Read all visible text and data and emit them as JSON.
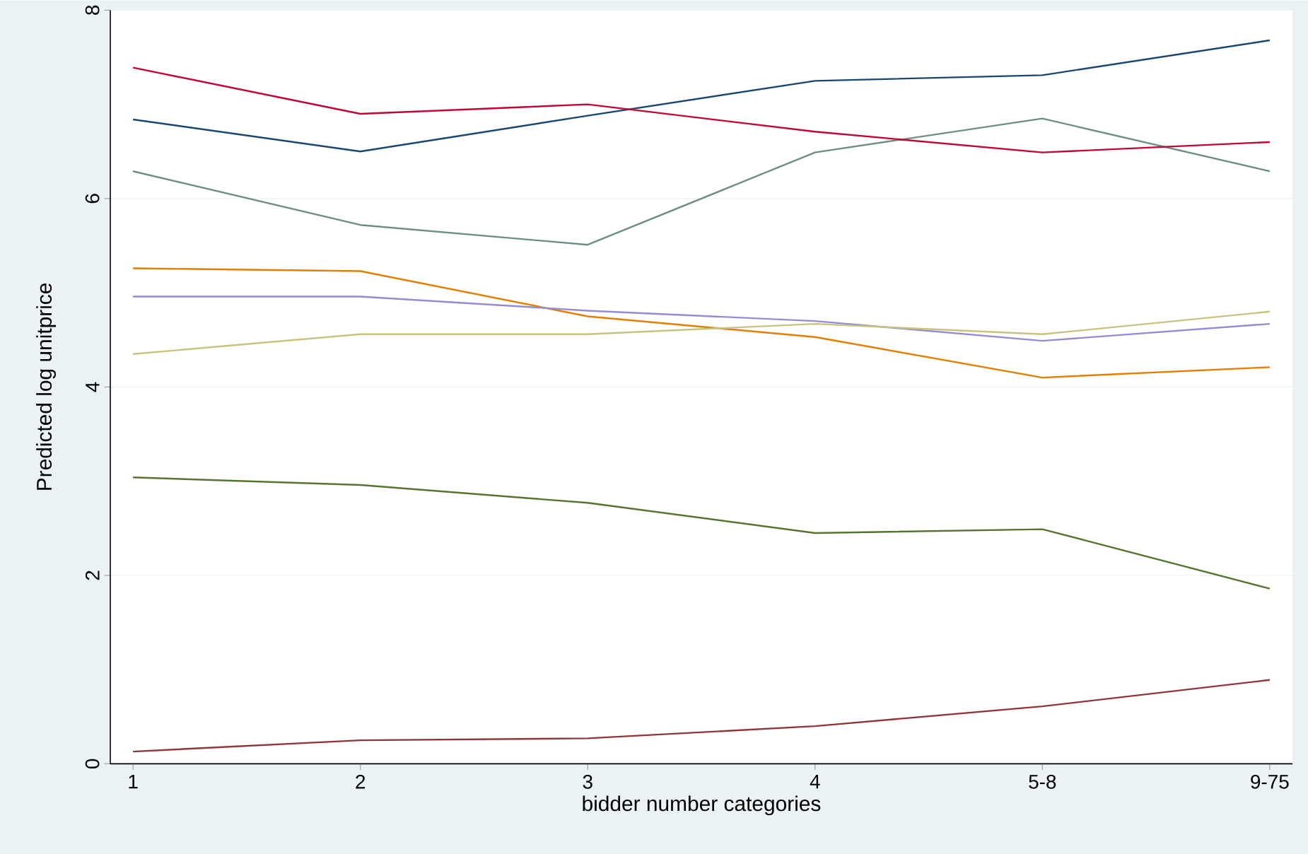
{
  "chart_data": {
    "type": "line",
    "xlabel": "bidder number categories",
    "ylabel": "Predicted log unitprice",
    "categories": [
      "1",
      "2",
      "3",
      "4",
      "5-8",
      "9-75"
    ],
    "ylim": [
      0,
      8
    ],
    "yticks": [
      0,
      2,
      4,
      6,
      8
    ],
    "grid": "y",
    "marker": "none",
    "line_style": "solid",
    "series": [
      {
        "color": "#1a476f",
        "values": [
          6.84,
          6.5,
          6.88,
          7.25,
          7.31,
          7.68
        ]
      },
      {
        "color": "#90353b",
        "values": [
          0.13,
          0.25,
          0.27,
          0.4,
          0.61,
          0.89
        ]
      },
      {
        "color": "#55752f",
        "values": [
          3.04,
          2.96,
          2.77,
          2.45,
          2.49,
          1.86
        ]
      },
      {
        "color": "#e37e00",
        "values": [
          5.26,
          5.23,
          4.75,
          4.53,
          4.1,
          4.21
        ]
      },
      {
        "color": "#6e8e84",
        "values": [
          6.29,
          5.72,
          5.51,
          6.49,
          6.85,
          6.29
        ]
      },
      {
        "color": "#c10534",
        "values": [
          7.39,
          6.9,
          7.0,
          6.71,
          6.49,
          6.6
        ]
      },
      {
        "color": "#938dd2",
        "values": [
          4.96,
          4.96,
          4.81,
          4.7,
          4.49,
          4.67
        ]
      },
      {
        "color": "#cac27e",
        "values": [
          4.35,
          4.56,
          4.56,
          4.67,
          4.56,
          4.8
        ]
      }
    ]
  }
}
